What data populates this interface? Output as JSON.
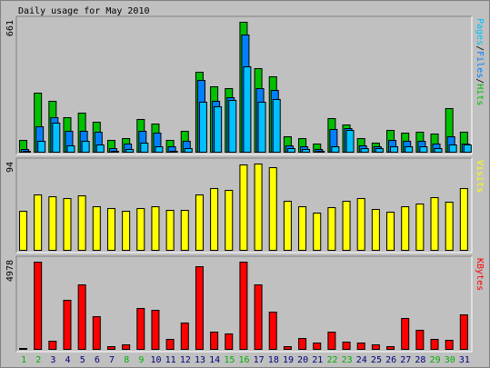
{
  "chart_data": {
    "type": "bar",
    "title": "Daily usage for May 2010",
    "categories": [
      "1",
      "2",
      "3",
      "4",
      "5",
      "6",
      "7",
      "8",
      "9",
      "10",
      "11",
      "12",
      "13",
      "14",
      "15",
      "16",
      "17",
      "18",
      "19",
      "20",
      "21",
      "22",
      "23",
      "24",
      "25",
      "26",
      "27",
      "28",
      "29",
      "30",
      "31"
    ],
    "weekend_days": [
      "1",
      "2",
      "8",
      "9",
      "15",
      "16",
      "22",
      "23",
      "29",
      "30"
    ],
    "colors": {
      "hits": "#00c000",
      "files": "#0080ff",
      "pages": "#00c0ff",
      "visits": "#ffff00",
      "kbytes": "#ff0000",
      "weekend_label": "#00b000",
      "weekday_label": "#000080"
    },
    "panels": [
      {
        "id": "hits_files_pages",
        "ymax_label": "661",
        "ylim": [
          0,
          661
        ],
        "right_label_parts": [
          {
            "text": "Pages",
            "color": "#00c0ff"
          },
          {
            "text": "/",
            "color": "#000000"
          },
          {
            "text": "Files",
            "color": "#0080ff"
          },
          {
            "text": "/",
            "color": "#000000"
          },
          {
            "text": "Hits",
            "color": "#00c000"
          }
        ],
        "series": [
          {
            "name": "Hits",
            "values": [
              62,
              302,
              262,
              180,
              200,
              155,
              65,
              75,
              172,
              146,
              64,
              110,
              410,
              335,
              324,
              661,
              425,
              387,
              82,
              74,
              48,
              176,
              142,
              74,
              51,
              116,
              101,
              104,
              97,
              227,
              105
            ]
          },
          {
            "name": "Files",
            "values": [
              17,
              131,
              177,
              108,
              112,
              106,
              23,
              44,
              112,
              99,
              30,
              60,
              365,
              260,
              281,
              599,
              326,
              317,
              35,
              30,
              19,
              120,
              125,
              39,
              30,
              65,
              61,
              59,
              44,
              84,
              48
            ]
          },
          {
            "name": "Pages",
            "values": [
              10,
              61,
              153,
              37,
              60,
              41,
              10,
              19,
              49,
              34,
              11,
              25,
              255,
              232,
              264,
              438,
              258,
              270,
              23,
              17,
              10,
              33,
              113,
              24,
              21,
              32,
              30,
              33,
              25,
              40,
              42
            ]
          }
        ]
      },
      {
        "id": "visits",
        "ymax_label": "94",
        "ylim": [
          0,
          94
        ],
        "right_label_parts": [
          {
            "text": "Visits",
            "color": "#ffff00"
          }
        ],
        "series": [
          {
            "name": "Visits",
            "values": [
              43,
              61,
              59,
              57,
              60,
              48,
              46,
              43,
              46,
              48,
              44,
              44,
              61,
              68,
              66,
              93,
              94,
              90,
              54,
              48,
              41,
              47,
              54,
              57,
              45,
              42,
              48,
              51,
              58,
              53,
              68
            ]
          }
        ]
      },
      {
        "id": "kbytes",
        "ymax_label": "4978",
        "ylim": [
          0,
          4978
        ],
        "right_label_parts": [
          {
            "text": "KBytes",
            "color": "#ff0000"
          }
        ],
        "series": [
          {
            "name": "KBytes",
            "values": [
              122,
              4978,
              509,
              2848,
              3690,
              1879,
              227,
              331,
              2377,
              2278,
              611,
              1529,
              4704,
              1010,
              916,
              4978,
              3690,
              2157,
              191,
              651,
              412,
              1006,
              459,
              412,
              288,
              229,
              1783,
              1117,
              610,
              565,
              1977
            ]
          }
        ]
      }
    ]
  }
}
